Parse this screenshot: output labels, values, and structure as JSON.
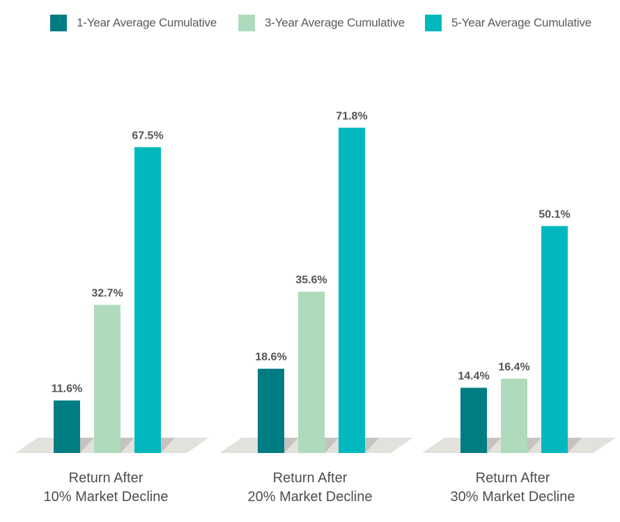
{
  "colors": {
    "series": [
      "#007d82",
      "#addbbb",
      "#00b8bd"
    ],
    "platform_light": "#e2e1dc",
    "platform_dark": "#c4c3bf",
    "label_text": "#4d4d4d",
    "value_text": "#555555"
  },
  "chart_data": {
    "type": "bar",
    "title": "",
    "xlabel": "",
    "ylabel": "",
    "categories": [
      [
        "Return After",
        "10% Market Decline"
      ],
      [
        "Return After",
        "20% Market Decline"
      ],
      [
        "Return After",
        "30% Market Decline"
      ]
    ],
    "series": [
      {
        "name": "1-Year Average Cumulative",
        "values": [
          11.6,
          18.6,
          14.4
        ],
        "labels": [
          "11.6%",
          "18.6%",
          "14.4%"
        ]
      },
      {
        "name": "3-Year Average Cumulative",
        "values": [
          32.7,
          35.6,
          16.4
        ],
        "labels": [
          "32.7%",
          "35.6%",
          "16.4%"
        ]
      },
      {
        "name": "5-Year Average Cumulative",
        "values": [
          67.5,
          71.8,
          50.1
        ],
        "labels": [
          "67.5%",
          "71.8%",
          "50.1%"
        ]
      }
    ],
    "ylim": [
      0,
      80
    ],
    "legend_position": "top",
    "grid": false
  }
}
